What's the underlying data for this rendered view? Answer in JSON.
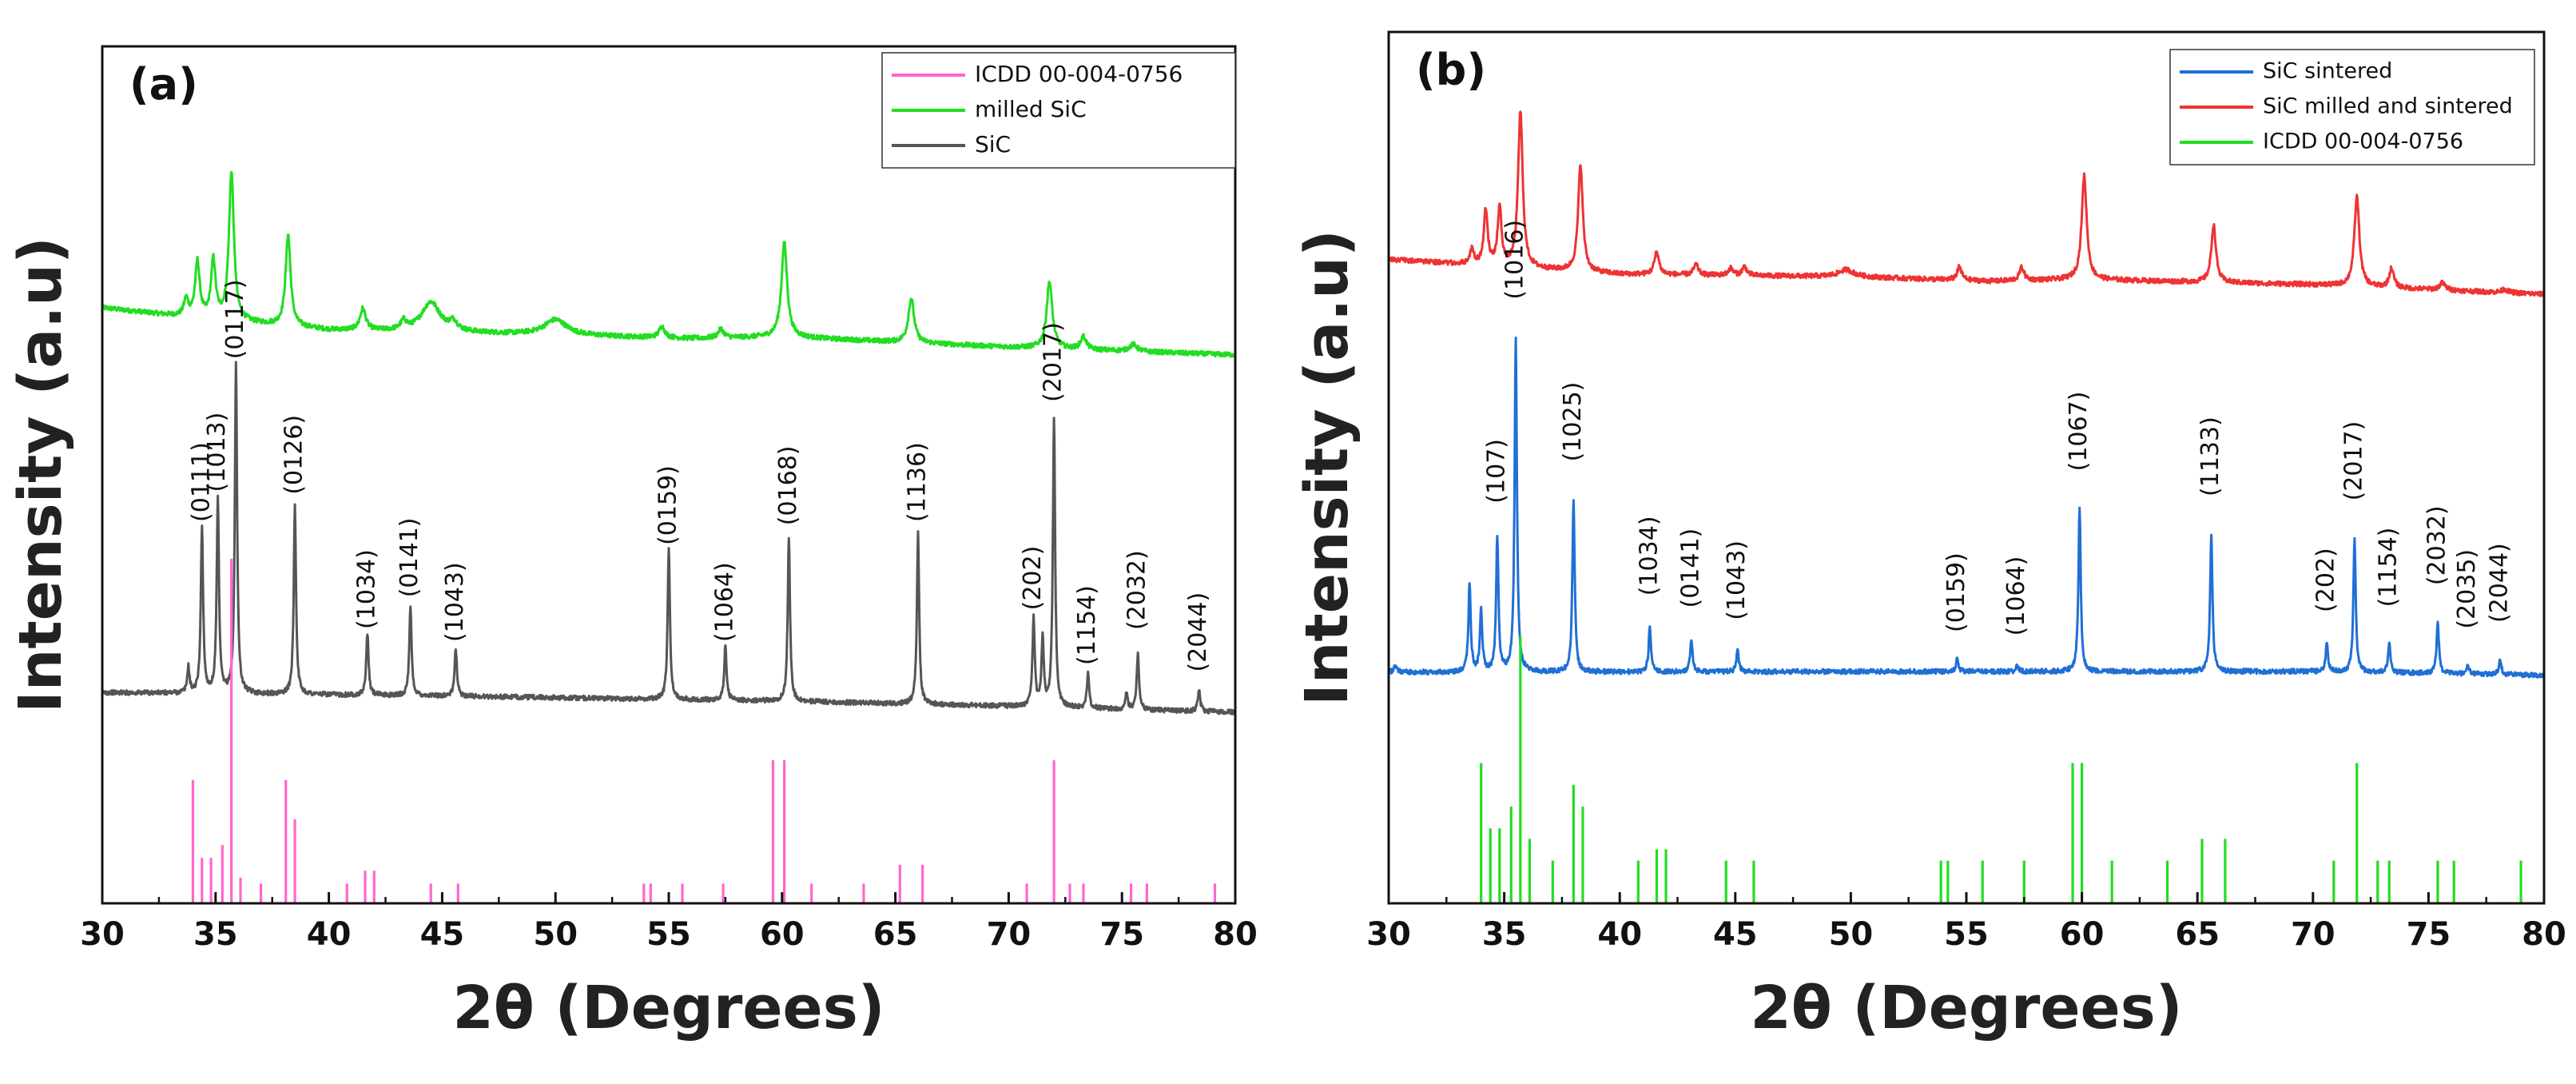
{
  "figure": {
    "background": "#ffffff"
  },
  "chart_data": [
    {
      "type": "line",
      "panel_label": "(a)",
      "xlabel": "2θ (Degrees)",
      "ylabel": "Intensity (a.u)",
      "xlim": [
        30,
        80
      ],
      "xticks": [
        30,
        35,
        40,
        45,
        50,
        55,
        60,
        65,
        70,
        75,
        80
      ],
      "ylim": [
        0,
        100
      ],
      "grid": false,
      "legend": {
        "placement": "top-right",
        "entries": [
          {
            "label": "ICDD 00-004-0756",
            "color": "#ff66cc"
          },
          {
            "label": "milled SiC",
            "color": "#22dd22"
          },
          {
            "label": "SiC",
            "color": "#555555"
          }
        ]
      },
      "series": [
        {
          "name": "milled SiC",
          "color": "#22dd22",
          "kind": "profile",
          "baseline": [
            [
              30,
              69.5
            ],
            [
              34,
              68.3
            ],
            [
              40,
              66.9
            ],
            [
              50,
              66.3
            ],
            [
              56,
              65.9
            ],
            [
              60,
              66.1
            ],
            [
              70,
              64.9
            ],
            [
              80,
              64.0
            ]
          ],
          "peaks": [
            [
              33.7,
              2.0,
              0.12
            ],
            [
              34.2,
              6.5,
              0.12
            ],
            [
              34.9,
              6.8,
              0.12
            ],
            [
              35.7,
              17.4,
              0.13
            ],
            [
              38.2,
              10.7,
              0.13
            ],
            [
              41.5,
              2.5,
              0.15
            ],
            [
              43.3,
              1.0,
              0.15
            ],
            [
              44.5,
              3.5,
              0.5
            ],
            [
              45.5,
              1.0,
              0.2
            ],
            [
              50.0,
              1.8,
              0.6
            ],
            [
              54.7,
              1.3,
              0.15
            ],
            [
              57.3,
              1.0,
              0.15
            ],
            [
              60.1,
              11.0,
              0.15
            ],
            [
              65.7,
              5.2,
              0.15
            ],
            [
              71.8,
              7.8,
              0.15
            ],
            [
              73.3,
              1.5,
              0.15
            ],
            [
              75.5,
              0.8,
              0.2
            ]
          ]
        },
        {
          "name": "SiC",
          "color": "#555555",
          "kind": "profile",
          "baseline": [
            [
              30,
              24.6
            ],
            [
              45,
              24.2
            ],
            [
              60,
              23.6
            ],
            [
              70,
              23.0
            ],
            [
              80,
              22.3
            ]
          ],
          "peaks": [
            [
              33.8,
              3.0,
              0.06
            ],
            [
              34.4,
              19.4,
              0.06
            ],
            [
              35.1,
              22.6,
              0.06
            ],
            [
              35.9,
              38.4,
              0.06
            ],
            [
              38.5,
              22.1,
              0.06
            ],
            [
              41.7,
              7.3,
              0.06
            ],
            [
              43.6,
              10.3,
              0.06
            ],
            [
              45.6,
              5.6,
              0.06
            ],
            [
              55.0,
              17.5,
              0.06
            ],
            [
              57.5,
              6.5,
              0.06
            ],
            [
              60.3,
              19.2,
              0.06
            ],
            [
              66.0,
              19.9,
              0.06
            ],
            [
              71.1,
              10.3,
              0.06
            ],
            [
              71.5,
              7.8,
              0.06
            ],
            [
              72.0,
              33.8,
              0.06
            ],
            [
              73.5,
              4.0,
              0.06
            ],
            [
              75.2,
              1.8,
              0.06
            ],
            [
              75.7,
              6.5,
              0.06
            ],
            [
              78.4,
              2.5,
              0.06
            ]
          ]
        },
        {
          "name": "ICDD 00-004-0756",
          "color": "#ff66cc",
          "kind": "sticks",
          "base": 0,
          "sticks": [
            [
              34.0,
              14.4
            ],
            [
              34.4,
              5.3
            ],
            [
              34.8,
              5.3
            ],
            [
              35.3,
              6.8
            ],
            [
              35.7,
              40.2
            ],
            [
              36.1,
              3.0
            ],
            [
              37.0,
              2.3
            ],
            [
              38.1,
              14.4
            ],
            [
              38.5,
              9.8
            ],
            [
              40.8,
              2.3
            ],
            [
              41.6,
              3.8
            ],
            [
              42.0,
              3.8
            ],
            [
              44.5,
              2.3
            ],
            [
              45.7,
              2.3
            ],
            [
              53.9,
              2.3
            ],
            [
              54.2,
              2.3
            ],
            [
              55.6,
              2.3
            ],
            [
              57.4,
              2.3
            ],
            [
              59.6,
              16.7
            ],
            [
              60.1,
              16.7
            ],
            [
              61.3,
              2.3
            ],
            [
              63.6,
              2.3
            ],
            [
              65.2,
              4.5
            ],
            [
              66.2,
              4.5
            ],
            [
              70.8,
              2.3
            ],
            [
              72.0,
              16.7
            ],
            [
              72.7,
              2.3
            ],
            [
              73.3,
              2.3
            ],
            [
              75.4,
              2.3
            ],
            [
              76.1,
              2.3
            ],
            [
              79.1,
              2.3
            ]
          ]
        }
      ],
      "annotations": [
        {
          "text": "(0111)",
          "x": 34.4,
          "y": 44.5
        },
        {
          "text": "(1013)",
          "x": 35.1,
          "y": 48.0
        },
        {
          "text": "(0117)",
          "x": 35.9,
          "y": 63.5
        },
        {
          "text": "(0126)",
          "x": 38.5,
          "y": 47.7
        },
        {
          "text": "(1034)",
          "x": 41.7,
          "y": 32.0
        },
        {
          "text": "(0141)",
          "x": 43.6,
          "y": 35.7
        },
        {
          "text": "(1043)",
          "x": 45.6,
          "y": 30.5
        },
        {
          "text": "(0159)",
          "x": 55.0,
          "y": 41.8
        },
        {
          "text": "(1064)",
          "x": 57.5,
          "y": 30.5
        },
        {
          "text": "(0168)",
          "x": 60.3,
          "y": 44.1
        },
        {
          "text": "(1136)",
          "x": 66.0,
          "y": 44.5
        },
        {
          "text": "(202)",
          "x": 71.1,
          "y": 34.2
        },
        {
          "text": "(2017)",
          "x": 72.0,
          "y": 58.5
        },
        {
          "text": "(1154)",
          "x": 73.5,
          "y": 27.8
        },
        {
          "text": "(2032)",
          "x": 75.7,
          "y": 31.9
        },
        {
          "text": "(2044)",
          "x": 78.4,
          "y": 27.0
        }
      ]
    },
    {
      "type": "line",
      "panel_label": "(b)",
      "xlabel": "2θ (Degrees)",
      "ylabel": "Intensity (a.u)",
      "xlim": [
        30,
        80
      ],
      "xticks": [
        30,
        35,
        40,
        45,
        50,
        55,
        60,
        65,
        70,
        75,
        80
      ],
      "ylim": [
        0,
        100
      ],
      "grid": false,
      "legend": {
        "placement": "top-right",
        "entries": [
          {
            "label": "SiC sintered",
            "color": "#1f6fd6"
          },
          {
            "label": "SiC milled and sintered",
            "color": "#ee3333"
          },
          {
            "label": "ICDD 00-004-0756",
            "color": "#22dd22"
          }
        ]
      },
      "series": [
        {
          "name": "SiC milled and sintered",
          "color": "#ee3333",
          "kind": "profile",
          "baseline": [
            [
              30,
              73.9
            ],
            [
              34,
              73.2
            ],
            [
              40,
              72.2
            ],
            [
              50,
              71.9
            ],
            [
              56,
              71.4
            ],
            [
              60,
              71.6
            ],
            [
              70,
              71.0
            ],
            [
              80,
              69.9
            ]
          ],
          "peaks": [
            [
              33.6,
              1.8,
              0.1
            ],
            [
              34.2,
              6.4,
              0.1
            ],
            [
              34.8,
              6.7,
              0.1
            ],
            [
              35.7,
              17.9,
              0.12
            ],
            [
              38.3,
              12.3,
              0.12
            ],
            [
              41.6,
              2.6,
              0.12
            ],
            [
              43.3,
              1.2,
              0.12
            ],
            [
              44.8,
              0.8,
              0.12
            ],
            [
              45.4,
              1.0,
              0.12
            ],
            [
              49.8,
              0.8,
              0.4
            ],
            [
              54.7,
              1.5,
              0.12
            ],
            [
              57.4,
              1.5,
              0.12
            ],
            [
              60.1,
              11.9,
              0.13
            ],
            [
              65.7,
              6.6,
              0.12
            ],
            [
              71.9,
              10.3,
              0.13
            ],
            [
              73.4,
              2.2,
              0.12
            ],
            [
              75.6,
              0.8,
              0.15
            ],
            [
              78.3,
              0.4,
              0.15
            ]
          ]
        },
        {
          "name": "SiC sintered",
          "color": "#1f6fd6",
          "kind": "profile",
          "baseline": [
            [
              30,
              26.5
            ],
            [
              50,
              26.6
            ],
            [
              60,
              26.6
            ],
            [
              70,
              26.6
            ],
            [
              80,
              26.2
            ]
          ],
          "peaks": [
            [
              30.3,
              0.8,
              0.08
            ],
            [
              33.5,
              10.0,
              0.06
            ],
            [
              34.0,
              7.2,
              0.06
            ],
            [
              34.7,
              15.5,
              0.06
            ],
            [
              35.5,
              38.3,
              0.06
            ],
            [
              38.0,
              19.8,
              0.06
            ],
            [
              41.3,
              5.1,
              0.06
            ],
            [
              43.1,
              3.7,
              0.06
            ],
            [
              45.1,
              2.6,
              0.06
            ],
            [
              54.6,
              1.5,
              0.06
            ],
            [
              57.2,
              0.8,
              0.06
            ],
            [
              59.9,
              18.8,
              0.06
            ],
            [
              65.6,
              15.8,
              0.06
            ],
            [
              70.6,
              3.2,
              0.06
            ],
            [
              71.8,
              15.3,
              0.06
            ],
            [
              73.3,
              3.5,
              0.06
            ],
            [
              75.4,
              6.0,
              0.06
            ],
            [
              76.7,
              1.0,
              0.06
            ],
            [
              78.1,
              1.8,
              0.06
            ]
          ]
        },
        {
          "name": "ICDD 00-004-0756",
          "color": "#22dd22",
          "kind": "sticks",
          "base": 0,
          "sticks": [
            [
              34.0,
              16.1
            ],
            [
              34.4,
              8.6
            ],
            [
              34.8,
              8.6
            ],
            [
              35.3,
              11.1
            ],
            [
              35.7,
              30.6
            ],
            [
              36.1,
              7.4
            ],
            [
              37.1,
              4.9
            ],
            [
              38.0,
              13.6
            ],
            [
              38.4,
              11.1
            ],
            [
              40.8,
              4.9
            ],
            [
              41.6,
              6.2
            ],
            [
              42.0,
              6.2
            ],
            [
              44.6,
              4.9
            ],
            [
              45.8,
              4.9
            ],
            [
              53.9,
              4.9
            ],
            [
              54.2,
              4.9
            ],
            [
              55.7,
              4.9
            ],
            [
              57.5,
              4.9
            ],
            [
              59.6,
              16.1
            ],
            [
              60.0,
              16.1
            ],
            [
              61.3,
              4.9
            ],
            [
              63.7,
              4.9
            ],
            [
              65.2,
              7.4
            ],
            [
              66.2,
              7.4
            ],
            [
              70.9,
              4.9
            ],
            [
              71.9,
              16.1
            ],
            [
              72.8,
              4.9
            ],
            [
              73.3,
              4.9
            ],
            [
              75.4,
              4.9
            ],
            [
              76.1,
              4.9
            ],
            [
              79.0,
              4.9
            ]
          ]
        }
      ],
      "annotations": [
        {
          "text": "(107)",
          "x": 34.7,
          "y": 45.9
        },
        {
          "text": "(1016)",
          "x": 35.5,
          "y": 69.3
        },
        {
          "text": "(1025)",
          "x": 38.0,
          "y": 50.7
        },
        {
          "text": "(1034)",
          "x": 41.3,
          "y": 35.3
        },
        {
          "text": "(0141)",
          "x": 43.1,
          "y": 33.9
        },
        {
          "text": "(1043)",
          "x": 45.1,
          "y": 32.5
        },
        {
          "text": "(0159)",
          "x": 54.6,
          "y": 31.1
        },
        {
          "text": "(1064)",
          "x": 57.2,
          "y": 30.7
        },
        {
          "text": "(1067)",
          "x": 59.9,
          "y": 49.6
        },
        {
          "text": "(1133)",
          "x": 65.6,
          "y": 46.7
        },
        {
          "text": "(202)",
          "x": 70.6,
          "y": 33.4
        },
        {
          "text": "(2017)",
          "x": 71.8,
          "y": 46.2
        },
        {
          "text": "(1154)",
          "x": 73.3,
          "y": 34.0
        },
        {
          "text": "(2032)",
          "x": 75.4,
          "y": 36.5
        },
        {
          "text": "(2035)",
          "x": 76.7,
          "y": 31.5
        },
        {
          "text": "(2044)",
          "x": 78.1,
          "y": 32.2
        }
      ]
    }
  ]
}
